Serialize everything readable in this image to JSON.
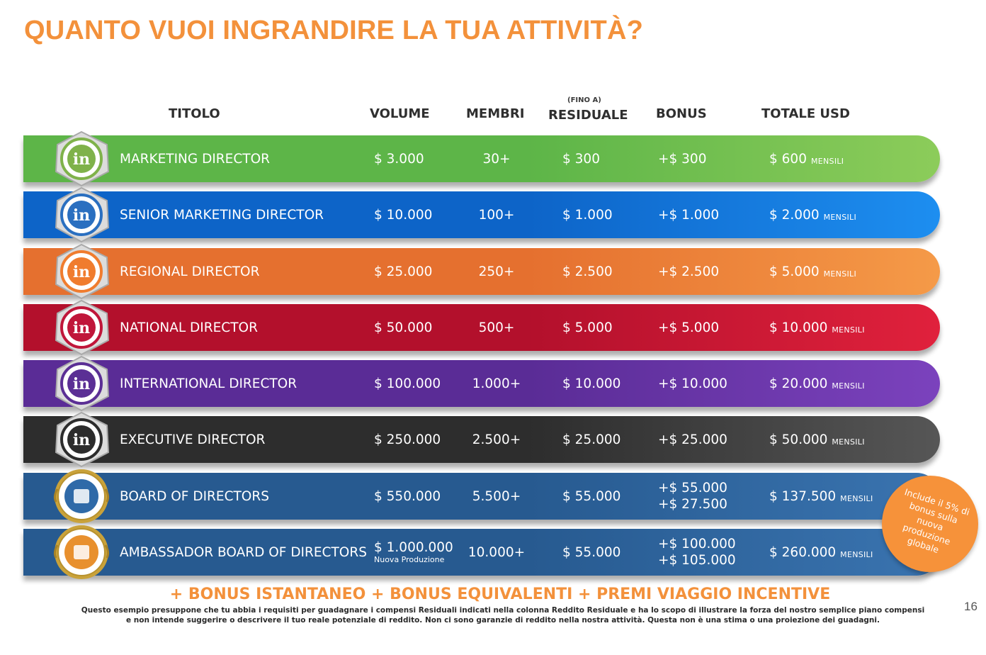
{
  "page_title": "QUANTO VUOI INGRANDIRE LA TUA ATTIVITÀ?",
  "headers": {
    "titolo": "TITOLO",
    "volume": "VOLUME",
    "membri": "MEMBRI",
    "residuale_sub": "(FINO A)",
    "residuale": "RESIDUALE",
    "bonus": "BONUS",
    "totale": "TOTALE USD"
  },
  "rows": [
    {
      "title": "MARKETING DIRECTOR",
      "volume": "$ 3.000",
      "membri": "30+",
      "residuale": "$ 300",
      "bonus": [
        "+$ 300"
      ],
      "totale": "$ 600",
      "mensili": "MENSILI",
      "color": "#5db548",
      "color2": "#8ccc5a",
      "badge_color": "#7fb24a"
    },
    {
      "title": "SENIOR MARKETING DIRECTOR",
      "volume": "$ 10.000",
      "membri": "100+",
      "residuale": "$ 1.000",
      "bonus": [
        "+$ 1.000"
      ],
      "totale": "$ 2.000",
      "mensili": "MENSILI",
      "color": "#0d64c8",
      "color2": "#1d8ef0",
      "badge_color": "#2a6fc0"
    },
    {
      "title": "REGIONAL DIRECTOR",
      "volume": "$ 25.000",
      "membri": "250+",
      "residuale": "$ 2.500",
      "bonus": [
        "+$ 2.500"
      ],
      "totale": "$ 5.000",
      "mensili": "MENSILI",
      "color": "#e5702f",
      "color2": "#f59a48",
      "badge_color": "#f07c2e"
    },
    {
      "title": "NATIONAL DIRECTOR",
      "volume": "$ 50.000",
      "membri": "500+",
      "residuale": "$ 5.000",
      "bonus": [
        "+$ 5.000"
      ],
      "totale": "$ 10.000",
      "mensili": "MENSILI",
      "color": "#b3102c",
      "color2": "#e0213c",
      "badge_color": "#c0163a"
    },
    {
      "title": "INTERNATIONAL DIRECTOR",
      "volume": "$ 100.000",
      "membri": "1.000+",
      "residuale": "$ 10.000",
      "bonus": [
        "+$ 10.000"
      ],
      "totale": "$ 20.000",
      "mensili": "MENSILI",
      "color": "#5a2c96",
      "color2": "#7b42bd",
      "badge_color": "#5b2f95"
    },
    {
      "title": "EXECUTIVE DIRECTOR",
      "volume": "$ 250.000",
      "membri": "2.500+",
      "residuale": "$ 25.000",
      "bonus": [
        "+$ 25.000"
      ],
      "totale": "$ 50.000",
      "mensili": "MENSILI",
      "color": "#2d2d2d",
      "color2": "#565656",
      "badge_color": "#2c2c2c"
    },
    {
      "title": "BOARD OF DIRECTORS",
      "volume": "$ 550.000",
      "membri": "5.500+",
      "residuale": "$ 55.000",
      "bonus": [
        "+$ 55.000",
        "+$ 27.500"
      ],
      "totale": "$ 137.500",
      "mensili": "MENSILI",
      "color": "#275a90",
      "color2": "#3a74b0",
      "badge_color": "#2f6aa8"
    },
    {
      "title": "AMBASSADOR BOARD OF DIRECTORS",
      "volume": "$ 1.000.000",
      "volume_note": "Nuova Produzione",
      "membri": "10.000+",
      "residuale": "$ 55.000",
      "bonus": [
        "+$ 100.000",
        "+$ 105.000"
      ],
      "totale": "$ 260.000",
      "mensili": "MENSILI",
      "color": "#275a90",
      "color2": "#3a74b0",
      "badge_color": "#e8902e"
    }
  ],
  "circle_note": "Include il 5% di bonus sulla nuova produzione globale",
  "bonus_line": "+ BONUS ISTANTANEO + BONUS EQUIVALENTI + PREMI VIAGGIO INCENTIVE",
  "disclaimer": "Questo esempio presuppone che tu abbia i requisiti per guadagnare i compensi Residuali indicati nella colonna Reddito Residuale e ha lo scopo di illustrare la forza del nostro semplice piano compensi e non intende suggerire o descrivere il tuo reale potenziale di reddito. Non ci sono garanzie di reddito nella nostra attività. Questa non è una stima o una proiezione dei guadagni.",
  "page_number": "16"
}
